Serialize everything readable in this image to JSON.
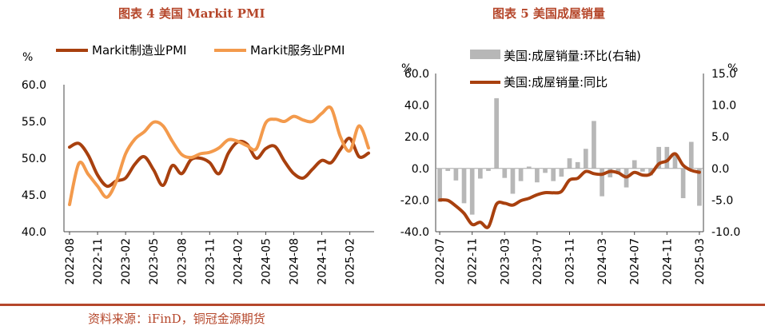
{
  "figure_titles": {
    "left": "图表 4 美国 Markit PMI",
    "right": "图表 5 美国成屋销量"
  },
  "source": "资料来源：iFinD，铜冠金源期货",
  "colors": {
    "accent": "#b5462a",
    "series_dark": "#a8400e",
    "series_light": "#f39a4c",
    "bars": "#b7b7b7"
  },
  "chart_data": [
    {
      "type": "line",
      "title": "图表 4 美国 Markit PMI",
      "ylabel": "%",
      "ylim": [
        40,
        60
      ],
      "yticks": [
        "60.0",
        "55.0",
        "50.0",
        "45.0",
        "40.0"
      ],
      "xticks": [
        "2022-08",
        "2022-11",
        "2023-02",
        "2023-05",
        "2023-08",
        "2023-11",
        "2024-02",
        "2024-05",
        "2024-08",
        "2024-11",
        "2025-02"
      ],
      "x": [
        "2022-08",
        "2022-09",
        "2022-10",
        "2022-11",
        "2022-12",
        "2023-01",
        "2023-02",
        "2023-03",
        "2023-04",
        "2023-05",
        "2023-06",
        "2023-07",
        "2023-08",
        "2023-09",
        "2023-10",
        "2023-11",
        "2023-12",
        "2024-01",
        "2024-02",
        "2024-03",
        "2024-04",
        "2024-05",
        "2024-06",
        "2024-07",
        "2024-08",
        "2024-09",
        "2024-10",
        "2024-11",
        "2024-12",
        "2025-01",
        "2025-02",
        "2025-03",
        "2025-04"
      ],
      "series": [
        {
          "name": "Markit制造业PMI",
          "color": "#a8400e",
          "values": [
            51.5,
            52.0,
            50.4,
            47.7,
            46.2,
            46.9,
            47.3,
            49.2,
            50.2,
            48.4,
            46.3,
            49.0,
            47.9,
            49.8,
            50.0,
            49.4,
            47.9,
            50.7,
            52.2,
            51.9,
            50.0,
            51.3,
            51.6,
            49.6,
            47.9,
            47.3,
            48.5,
            49.7,
            49.4,
            51.2,
            52.7,
            50.2,
            50.7
          ]
        },
        {
          "name": "Markit服务业PMI",
          "color": "#f39a4c",
          "values": [
            43.7,
            49.3,
            47.8,
            46.2,
            44.7,
            46.8,
            50.6,
            52.6,
            53.6,
            54.9,
            54.4,
            52.3,
            50.5,
            50.1,
            50.6,
            50.8,
            51.4,
            52.5,
            52.3,
            51.7,
            51.3,
            54.8,
            55.3,
            55.0,
            55.7,
            55.2,
            55.0,
            56.1,
            56.8,
            52.9,
            51.0,
            54.4,
            51.4
          ]
        }
      ]
    },
    {
      "type": "bar+line",
      "title": "图表 5 美国成屋销量",
      "ylabel_left": "%",
      "ylabel_right": "%",
      "ylim_left": [
        -40,
        60
      ],
      "ylim_right": [
        -10,
        15
      ],
      "yticks_left": [
        "60.0",
        "40.0",
        "20.0",
        "0.0",
        "-20.0",
        "-40.0"
      ],
      "yticks_right": [
        "15.0",
        "10.0",
        "5.0",
        "0.0",
        "-5.0",
        "-10.0"
      ],
      "xticks": [
        "2022-07",
        "2022-11",
        "2023-03",
        "2023-07",
        "2023-11",
        "2024-03",
        "2024-07",
        "2024-11",
        "2025-03"
      ],
      "x": [
        "2022-07",
        "2022-08",
        "2022-09",
        "2022-10",
        "2022-11",
        "2022-12",
        "2023-01",
        "2023-02",
        "2023-03",
        "2023-04",
        "2023-05",
        "2023-06",
        "2023-07",
        "2023-08",
        "2023-09",
        "2023-10",
        "2023-11",
        "2023-12",
        "2024-01",
        "2024-02",
        "2024-03",
        "2024-04",
        "2024-05",
        "2024-06",
        "2024-07",
        "2024-08",
        "2024-09",
        "2024-10",
        "2024-11",
        "2024-12",
        "2025-01",
        "2025-02",
        "2025-03"
      ],
      "series": [
        {
          "name": "美国:成屋销量:环比(右轴)",
          "type": "bar",
          "axis": "right",
          "color": "#b7b7b7",
          "values": [
            -5.3,
            -0.4,
            -1.9,
            -5.5,
            -7.3,
            -1.6,
            -0.4,
            11.1,
            -1.5,
            -4.0,
            -2.0,
            0.3,
            -2.2,
            -0.7,
            -2.0,
            -1.3,
            1.6,
            1.0,
            3.1,
            7.5,
            -4.4,
            -1.4,
            -0.9,
            -3.0,
            1.3,
            -0.5,
            -1.1,
            3.4,
            3.4,
            2.2,
            -4.7,
            4.2,
            -5.9
          ]
        },
        {
          "name": "美国:成屋销量:同比",
          "type": "line",
          "axis": "left",
          "color": "#a8400e",
          "values": [
            -19.9,
            -20.2,
            -23.8,
            -28.4,
            -35.4,
            -34.0,
            -36.9,
            -22.6,
            -22.0,
            -23.2,
            -20.4,
            -18.9,
            -16.6,
            -15.3,
            -15.4,
            -14.6,
            -7.3,
            -6.2,
            -1.9,
            -3.3,
            -3.7,
            -1.9,
            -2.8,
            -5.4,
            -2.5,
            -4.2,
            -3.5,
            2.9,
            4.8,
            9.3,
            2.0,
            -1.2,
            -2.4
          ]
        }
      ]
    }
  ]
}
